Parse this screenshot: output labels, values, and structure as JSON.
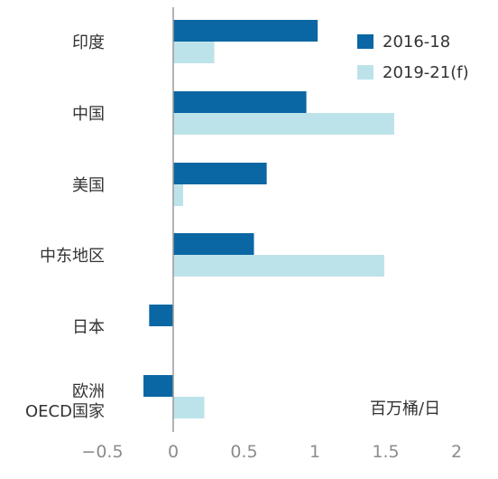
{
  "chart_data": {
    "type": "bar",
    "orientation": "horizontal",
    "categories": [
      "印度",
      "中国",
      "美国",
      "中东地区",
      "日本",
      "欧洲\nOECD国家"
    ],
    "series": [
      {
        "name": "2016-18",
        "color": "#0a67a3",
        "values": [
          1.02,
          0.94,
          0.66,
          0.57,
          -0.17,
          -0.21
        ]
      },
      {
        "name": "2019-21(f)",
        "color": "#bde3ea",
        "values": [
          0.29,
          1.56,
          0.07,
          1.49,
          null,
          0.22
        ]
      }
    ],
    "xlim": [
      -0.5,
      2
    ],
    "xticks": [
      -0.5,
      0,
      0.5,
      1,
      1.5,
      2
    ],
    "xtick_labels": [
      "−0.5",
      "0",
      "0.5",
      "1",
      "1.5",
      "2"
    ],
    "unit_label": "百万桶/日",
    "legend_position": "top-right",
    "grid": false,
    "zero_line_color": "#9a9a9a",
    "axis_color": "#9a9a9a",
    "text_color": "#333333",
    "tick_color": "#8c8c8c"
  }
}
